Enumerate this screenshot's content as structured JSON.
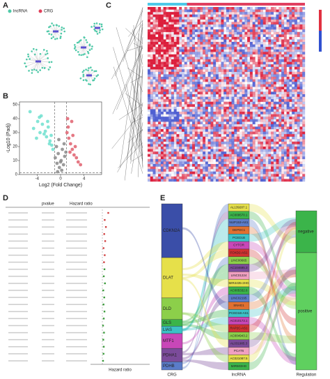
{
  "panels": [
    "A",
    "B",
    "C",
    "D",
    "E"
  ],
  "chart_data": [
    {
      "type": "network",
      "legend": [
        {
          "name": "lncRNA",
          "color": "#4ec9a8"
        },
        {
          "name": "CRG",
          "color": "#e0405a"
        }
      ]
    },
    {
      "type": "scatter",
      "xlabel": "Log2 (Fold Change)",
      "ylabel": "-Log10 (Padj)",
      "xlim": [
        -7,
        7
      ],
      "ylim": [
        0,
        52
      ],
      "xticks": [
        -4,
        0,
        4
      ],
      "yticks": [
        0,
        10,
        20,
        30,
        40,
        50
      ],
      "series": [
        {
          "color": "#6fe0cf",
          "x": [
            -5.2,
            -4.6,
            -3.9,
            -3.5,
            -3.1,
            -2.8,
            -2.4,
            -2.1,
            -1.8,
            -1.5,
            -1.3,
            -3.3,
            -2.6,
            -4.1,
            -1.9,
            -2.2,
            -3.6,
            -1.6
          ],
          "values": [
            45,
            33,
            38,
            30,
            36,
            29,
            27,
            34,
            24,
            21,
            18,
            42,
            31,
            26,
            22,
            38,
            41,
            28
          ]
        },
        {
          "color": "#8a8a8a",
          "x": [
            -0.9,
            -0.6,
            -0.4,
            -0.2,
            0.1,
            0.3,
            0.5,
            0.7,
            -0.7,
            0.2,
            -0.3,
            0.6,
            0.9,
            -0.5,
            0.0
          ],
          "values": [
            12,
            8,
            15,
            5,
            10,
            18,
            7,
            13,
            20,
            3,
            25,
            22,
            16,
            2,
            9
          ]
        },
        {
          "color": "#e0606e",
          "x": [
            1.1,
            1.4,
            1.7,
            2.0,
            2.3,
            2.7,
            3.0,
            1.3,
            1.9,
            2.5,
            1.6,
            3.4,
            2.1,
            1.2
          ],
          "values": [
            30,
            26,
            22,
            18,
            14,
            12,
            9,
            34,
            38,
            20,
            16,
            7,
            28,
            40
          ]
        }
      ],
      "hline": 1.3,
      "vlines": [
        -1,
        1
      ]
    },
    {
      "type": "heatmap"
    },
    {
      "type": "forest",
      "headers": [
        "pvalue",
        "Hazard ratio"
      ],
      "xlabel": "Hazard ratio",
      "xlim": [
        0.5,
        3
      ],
      "ref": 1,
      "values": [
        1.25,
        1.1,
        1.15,
        1.08,
        1.12,
        1.05,
        1.1,
        1.07,
        1.09,
        1.06,
        1.11,
        1.04,
        1.08,
        1.05,
        1.09,
        1.06,
        1.03,
        1.07,
        1.04,
        1.06,
        1.05,
        1.03
      ]
    },
    {
      "type": "sankey",
      "axes": [
        "CRG",
        "lncRNA",
        "Regulation"
      ],
      "crg": [
        {
          "name": "CDKN2A",
          "color": "#3a4ea8"
        },
        {
          "name": "DLAT",
          "color": "#e6e04a"
        },
        {
          "name": "DLD",
          "color": "#8ccf4a"
        },
        {
          "name": "GLS",
          "color": "#3bb44a"
        },
        {
          "name": "LIAS",
          "color": "#3cc2c6"
        },
        {
          "name": "MTF1",
          "color": "#c847b8"
        },
        {
          "name": "PDHA1",
          "color": "#7b4b9a"
        },
        {
          "name": "PDHB",
          "color": "#5a7cc9"
        }
      ],
      "lncrna": [
        "AL139287.1",
        "AC009570.1",
        "NUP153-AS1",
        "DEPDC1",
        "PCED1B",
        "CYTOR",
        "FOXD2-AS1",
        "LINC00665",
        "AC104695.3",
        "LINC01224",
        "MIR4435-2HG",
        "AC005332.6",
        "LINC02195",
        "SNHG1",
        "PCED1B-AS1",
        "AC010173.1",
        "RAP2C-AS1",
        "AC004943.2",
        "AL031985.3",
        "PCAT6",
        "AC021087.5",
        "MIR503HG"
      ],
      "regulation": [
        "negative",
        "positive"
      ]
    }
  ]
}
